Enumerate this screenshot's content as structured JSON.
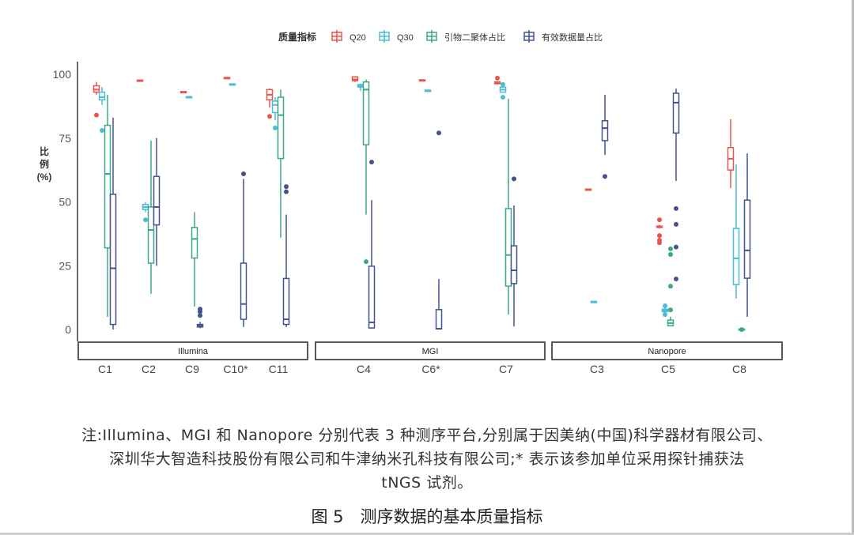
{
  "chart_data": {
    "type": "box",
    "legend_title": "质量指标",
    "legend_position": "top",
    "ylabel": [
      "比",
      "例",
      "(%)"
    ],
    "ylim": [
      0,
      100
    ],
    "yticks": [
      "0",
      "25",
      "50",
      "75",
      "100"
    ],
    "series": [
      {
        "name": "Q20",
        "color": "#e8554a"
      },
      {
        "name": "Q30",
        "color": "#4bbcd6"
      },
      {
        "name": "引物二聚体占比",
        "color": "#3aa88a"
      },
      {
        "name": "有效数据量占比",
        "color": "#44538f"
      }
    ],
    "facets": [
      {
        "name": "Illumina",
        "categories": [
          {
            "label": "C1",
            "boxes": [
              {
                "box": [
                  92,
                  93,
                  94,
                  95.5,
                  97
                ],
                "out": [
                  84
                ]
              },
              {
                "box": [
                  88,
                  90,
                  91,
                  93,
                  95
                ],
                "out": [
                  78
                ]
              },
              {
                "box": [
                  5,
                  32,
                  61,
                  80,
                  92
                ],
                "out": []
              },
              {
                "box": [
                  0,
                  2,
                  24,
                  53,
                  83
                ],
                "out": []
              }
            ]
          },
          {
            "label": "C2",
            "boxes": [
              {
                "box": [
                  97.5,
                  97.5,
                  97.5,
                  97.5,
                  97.5
                ],
                "out": []
              },
              {
                "box": [
                  46,
                  47,
                  48,
                  49,
                  50
                ],
                "out": [
                  43
                ]
              },
              {
                "box": [
                  14,
                  26,
                  39,
                  48,
                  74
                ],
                "out": []
              },
              {
                "box": [
                  25,
                  41,
                  48,
                  60,
                  75
                ],
                "out": []
              }
            ]
          },
          {
            "label": "C9",
            "boxes": [
              {
                "box": [
                  93,
                  93,
                  93,
                  93,
                  93
                ],
                "out": []
              },
              {
                "box": [
                  91,
                  91,
                  91,
                  91,
                  91
                ],
                "out": []
              },
              {
                "box": [
                  9,
                  28,
                  35.5,
                  40,
                  46
                ],
                "out": []
              },
              {
                "box": [
                  0.5,
                  1,
                  1.5,
                  2,
                  3
                ],
                "out": [
                  5.5,
                  7,
                  8
                ]
              }
            ]
          },
          {
            "label": "C10*",
            "boxes": [
              {
                "box": [
                  98.5,
                  98.5,
                  98.5,
                  98.5,
                  98.5
                ],
                "out": []
              },
              {
                "box": [
                  96,
                  96,
                  96,
                  96,
                  96
                ],
                "out": []
              },
              null,
              {
                "box": [
                  1,
                  4,
                  10,
                  26,
                  59
                ],
                "out": [
                  61
                ]
              }
            ]
          },
          {
            "label": "C11",
            "boxes": [
              {
                "box": [
                  87,
                  90,
                  92,
                  94,
                  94.5
                ],
                "out": [
                  83.5
                ]
              },
              {
                "box": [
                  82,
                  85,
                  88,
                  89.5,
                  91
                ],
                "out": [
                  79
                ]
              },
              {
                "box": [
                  36,
                  67,
                  84,
                  91,
                  94
                ],
                "out": []
              },
              {
                "box": [
                  1,
                  2,
                  4,
                  20,
                  45
                ],
                "out": [
                  54,
                  56
                ]
              }
            ]
          }
        ]
      },
      {
        "name": "MGI",
        "categories": [
          {
            "label": "C4",
            "boxes": [
              {
                "box": [
                  97,
                  97.5,
                  98,
                  99,
                  99
                ],
                "out": []
              },
              {
                "box": [
                  93.5,
                  95,
                  95.5,
                  96,
                  96.3
                ],
                "out": []
              },
              {
                "box": [
                  45,
                  72.4,
                  94,
                  97,
                  98
                ],
                "out": [
                  26.6
                ]
              },
              {
                "box": [
                  0.5,
                  0.6,
                  2.8,
                  24.8,
                  50.7
                ],
                "out": [
                  65.6
                ]
              }
            ]
          },
          {
            "label": "C6*",
            "boxes": [
              {
                "box": [
                  97.6,
                  97.6,
                  97.6,
                  97.6,
                  97.6
                ],
                "out": []
              },
              {
                "box": [
                  93,
                  93.3,
                  93.5,
                  93.8,
                  94
                ],
                "out": []
              },
              null,
              {
                "box": [
                  0.3,
                  0.3,
                  0.3,
                  7.8,
                  19.8
                ],
                "out": [
                  77
                ]
              }
            ]
          },
          {
            "label": "C7",
            "boxes": [
              {
                "box": [
                  96,
                  96.3,
                  96.5,
                  97,
                  97
                ],
                "out": [
                  98.5
                ]
              },
              {
                "box": [
                  93,
                  93,
                  94,
                  95,
                  95
                ],
                "out": [
                  96,
                  91
                ]
              },
              {
                "box": [
                  5.9,
                  17,
                  29.2,
                  47.4,
                  90.4
                ],
                "out": []
              },
              {
                "box": [
                  1.2,
                  18,
                  23.2,
                  32.8,
                  48.6
                ],
                "out": [
                  59
                ]
              }
            ]
          }
        ]
      },
      {
        "name": "Nanopore",
        "categories": [
          {
            "label": "C3",
            "boxes": [
              {
                "box": [
                  54.8,
                  54.8,
                  54.8,
                  54.8,
                  54.8
                ],
                "out": []
              },
              {
                "box": [
                  10.8,
                  10.8,
                  10.8,
                  10.8,
                  10.8
                ],
                "out": []
              },
              null,
              {
                "box": [
                  68.4,
                  74,
                  78.9,
                  81.8,
                  92
                ],
                "out": [
                  60
                ]
              }
            ]
          },
          {
            "label": "C5",
            "boxes": [
              {
                "box": [
                  39.5,
                  40,
                  40.2,
                  40.5,
                  41
                ],
                "out": [
                  43,
                  36.8,
                  35,
                  34
                ]
              },
              {
                "box": [
                  6.5,
                  7,
                  7.5,
                  8,
                  8.5
                ],
                "out": [
                  9.3,
                  5.9
                ]
              },
              {
                "box": [
                  1.5,
                  1.5,
                  2.5,
                  3.7,
                  5
                ],
                "out": [
                  7.7,
                  17,
                  29.4,
                  31.6
                ]
              },
              {
                "box": [
                  58.2,
                  77,
                  88.9,
                  92.6,
                  94.4
                ],
                "out": [
                  47.4,
                  41.2,
                  32.3,
                  19.8
                ]
              }
            ]
          },
          {
            "label": "C8",
            "boxes": [
              {
                "box": [
                  55.4,
                  62.5,
                  66.9,
                  71.3,
                  82.4
                ],
                "out": []
              },
              {
                "box": [
                  12.1,
                  17.6,
                  27.9,
                  39.6,
                  64.7
                ],
                "out": []
              },
              {
                "box": [
                  0,
                  0,
                  0,
                  0,
                  0
                ],
                "out": [
                  0
                ]
              },
              {
                "box": [
                  5,
                  20.1,
                  31,
                  50.7,
                  69
                ],
                "out": []
              }
            ]
          }
        ]
      }
    ]
  },
  "caption": {
    "note_lines": [
      "注:Illumina、MGI 和 Nanopore 分别代表 3 种测序平台,分别属于因美纳(中国)科学器材有限公司、",
      "深圳华大智造科技股份有限公司和牛津纳米孔科技有限公司;* 表示该参加单位采用探针捕获法",
      "tNGS 试剂。"
    ],
    "figure_title": "图 5　测序数据的基本质量指标"
  }
}
